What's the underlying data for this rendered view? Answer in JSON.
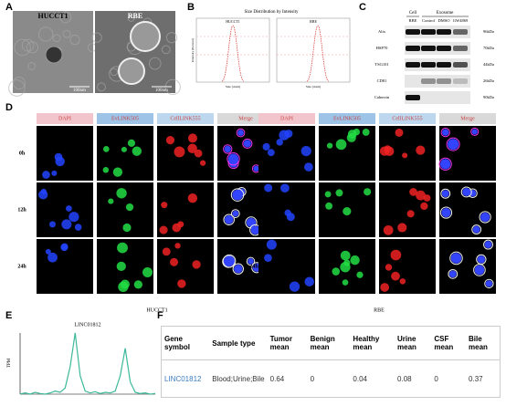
{
  "panels": {
    "a": "A",
    "b": "B",
    "c": "C",
    "d": "D",
    "e": "E",
    "f": "F"
  },
  "panel_a": {
    "images": [
      {
        "label": "HUCCT1",
        "scale": "100nm"
      },
      {
        "label": "RBE",
        "scale": "100nm"
      }
    ]
  },
  "panel_b": {
    "title": "Size Distribution by Intensity",
    "charts": [
      {
        "label": "HUCCT1"
      },
      {
        "label": "RBE"
      }
    ],
    "y_label": "Intensity (Percent)",
    "x_label": "Size (d.nm)"
  },
  "panel_c": {
    "groups": [
      "Cell",
      "Exosome"
    ],
    "lanes": [
      "RBE",
      "Control",
      "DMSO",
      "GW4869"
    ],
    "proteins": [
      {
        "name": "Alix",
        "size": "96kDa"
      },
      {
        "name": "HSP70",
        "size": "70kDa"
      },
      {
        "name": "TSG101",
        "size": "44kDa"
      },
      {
        "name": "CD81",
        "size": "26kDa"
      },
      {
        "name": "Calnexin",
        "size": "90kDa"
      }
    ]
  },
  "panel_d": {
    "channels": [
      "DAPI",
      "EvLINK505",
      "CellLINK555",
      "Merge"
    ],
    "times": [
      "0h",
      "12h",
      "24h"
    ],
    "cell_lines": [
      "HUCCT1",
      "RBE"
    ]
  },
  "panel_e": {
    "type": "line",
    "title": "LINC01812",
    "y_label": "TPM",
    "color": "#3cb89a",
    "values": [
      0,
      0.02,
      0,
      0.03,
      0.01,
      0,
      0.02,
      0.05,
      0.03,
      0.1,
      0.45,
      1.0,
      0.3,
      0.05,
      0.02,
      0.04,
      0.01,
      0.03,
      0.02,
      0.05,
      0.3,
      0.75,
      0.2,
      0.03,
      0.01,
      0.02,
      0,
      0.01
    ]
  },
  "panel_f": {
    "headers": [
      "Gene symbol",
      "Sample type",
      "Tumor mean",
      "Benign mean",
      "Healthy mean",
      "Urine mean",
      "CSF mean",
      "Bile mean"
    ],
    "rows": [
      [
        "LINC01812",
        "Blood;Urine;Bile",
        0.64,
        0,
        0.04,
        0.08,
        0,
        0.37
      ]
    ]
  }
}
